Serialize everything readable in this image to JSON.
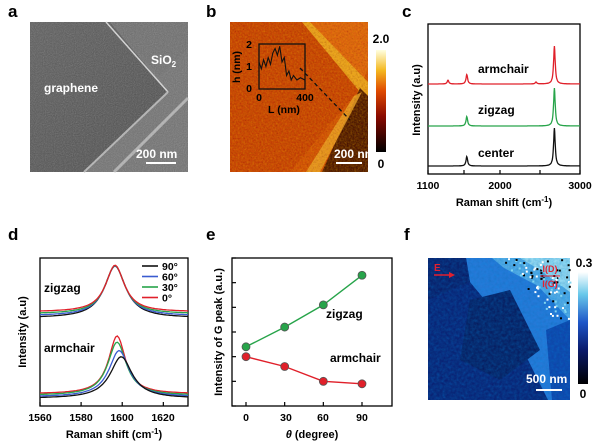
{
  "panels": {
    "a": {
      "label": "a",
      "graphene_label": "graphene",
      "sio2_label": "SiO",
      "sio2_sub": "2",
      "scalebar": "200 nm"
    },
    "b": {
      "label": "b",
      "cbar_max": "2.0",
      "cbar_min": "0",
      "scalebar": "200 nm",
      "inset": {
        "ylabel": "h (nm)",
        "xlabel": "L (nm)",
        "yticks": [
          "0",
          "1",
          "2"
        ],
        "xticks": [
          "0",
          "400"
        ],
        "profile": [
          [
            0,
            1.2
          ],
          [
            20,
            0.9
          ],
          [
            40,
            1.3
          ],
          [
            60,
            1.0
          ],
          [
            80,
            1.4
          ],
          [
            100,
            1.1
          ],
          [
            120,
            1.6
          ],
          [
            140,
            1.8
          ],
          [
            160,
            1.5
          ],
          [
            180,
            1.9
          ],
          [
            200,
            1.2
          ],
          [
            220,
            1.4
          ],
          [
            240,
            0.6
          ],
          [
            260,
            0.8
          ],
          [
            280,
            0.4
          ],
          [
            300,
            0.6
          ],
          [
            330,
            0.4
          ],
          [
            360,
            0.5
          ],
          [
            400,
            0.4
          ]
        ]
      }
    },
    "c": {
      "label": "c",
      "ylabel": "Intensity (a.u)",
      "xlabel_pre": "Raman shift (cm",
      "xlabel_sup": "-1",
      "xlabel_post": ")",
      "xticks": [
        "1100",
        "2000",
        "3000"
      ],
      "series_labels": [
        "armchair",
        "zigzag",
        "center"
      ]
    },
    "d": {
      "label": "d",
      "ylabel": "Intensity (a.u)",
      "xlabel_pre": "Raman shift (cm",
      "xlabel_sup": "-1",
      "xlabel_post": ")",
      "xticks": [
        "1560",
        "1580",
        "1600",
        "1620"
      ],
      "group_labels": [
        "zigzag",
        "armchair"
      ],
      "legend": [
        "90°",
        "60°",
        "30°",
        "0°"
      ]
    },
    "e": {
      "label": "e",
      "ylabel": "Intensity of G peak (a.u.)",
      "xlabel_theta": "θ",
      "xlabel_rest": " (degree)",
      "xticks": [
        "0",
        "30",
        "60",
        "90"
      ],
      "series_labels": [
        "zigzag",
        "armchair"
      ]
    },
    "f": {
      "label": "f",
      "arrow_label": "E",
      "ratio_top": "I(D)",
      "ratio_bottom": "I(G)",
      "cbar_max": "0.3",
      "cbar_min": "0",
      "scalebar": "500 nm"
    }
  },
  "colors": {
    "red": "#e0202a",
    "green": "#27a44a",
    "black": "#111111",
    "blue": "#3a5bd0"
  },
  "chart_data": [
    {
      "type": "line",
      "panel": "c",
      "xlabel": "Raman shift (cm-1)",
      "ylabel": "Intensity (a.u)",
      "xlim": [
        1100,
        3000
      ],
      "series": [
        {
          "name": "armchair",
          "color": "#e0202a",
          "peaks": [
            {
              "x": 1350,
              "h": 0.1
            },
            {
              "x": 1585,
              "h": 0.25
            },
            {
              "x": 2450,
              "h": 0.05
            },
            {
              "x": 2680,
              "h": 1.0
            }
          ]
        },
        {
          "name": "zigzag",
          "color": "#27a44a",
          "peaks": [
            {
              "x": 1585,
              "h": 0.25
            },
            {
              "x": 2680,
              "h": 1.0
            }
          ]
        },
        {
          "name": "center",
          "color": "#111111",
          "peaks": [
            {
              "x": 1585,
              "h": 0.25
            },
            {
              "x": 2680,
              "h": 1.0
            }
          ]
        }
      ]
    },
    {
      "type": "line",
      "panel": "d",
      "xlabel": "Raman shift (cm-1)",
      "ylabel": "Intensity (a.u)",
      "xlim": [
        1560,
        1632
      ],
      "zigzag": [
        {
          "name": "90°",
          "color": "#111111",
          "center": 1596.5,
          "width": 12.5,
          "amp": 1.0
        },
        {
          "name": "60°",
          "color": "#3a5bd0",
          "center": 1596.5,
          "width": 12.0,
          "amp": 0.96
        },
        {
          "name": "30°",
          "color": "#27a44a",
          "center": 1596.5,
          "width": 11.5,
          "amp": 0.93
        },
        {
          "name": "0°",
          "color": "#e0202a",
          "center": 1596.5,
          "width": 11.0,
          "amp": 0.9
        }
      ],
      "armchair": [
        {
          "name": "0°",
          "color": "#e0202a",
          "center": 1597.5,
          "width": 10.0,
          "amp": 1.0
        },
        {
          "name": "30°",
          "color": "#27a44a",
          "center": 1597.5,
          "width": 11.0,
          "amp": 0.92
        },
        {
          "name": "60°",
          "color": "#3a5bd0",
          "center": 1598.5,
          "width": 12.0,
          "amp": 0.8
        },
        {
          "name": "90°",
          "color": "#111111",
          "center": 1599.5,
          "width": 13.0,
          "amp": 0.72
        }
      ]
    },
    {
      "type": "line",
      "panel": "e",
      "xlabel": "θ (degree)",
      "ylabel": "Intensity of G peak (a.u.)",
      "x": [
        0,
        30,
        60,
        90
      ],
      "series": [
        {
          "name": "zigzag",
          "color": "#27a44a",
          "values": [
            2.4,
            3.2,
            4.1,
            5.3
          ]
        },
        {
          "name": "armchair",
          "color": "#e0202a",
          "values": [
            2.0,
            1.6,
            1.0,
            0.9
          ]
        }
      ]
    }
  ]
}
